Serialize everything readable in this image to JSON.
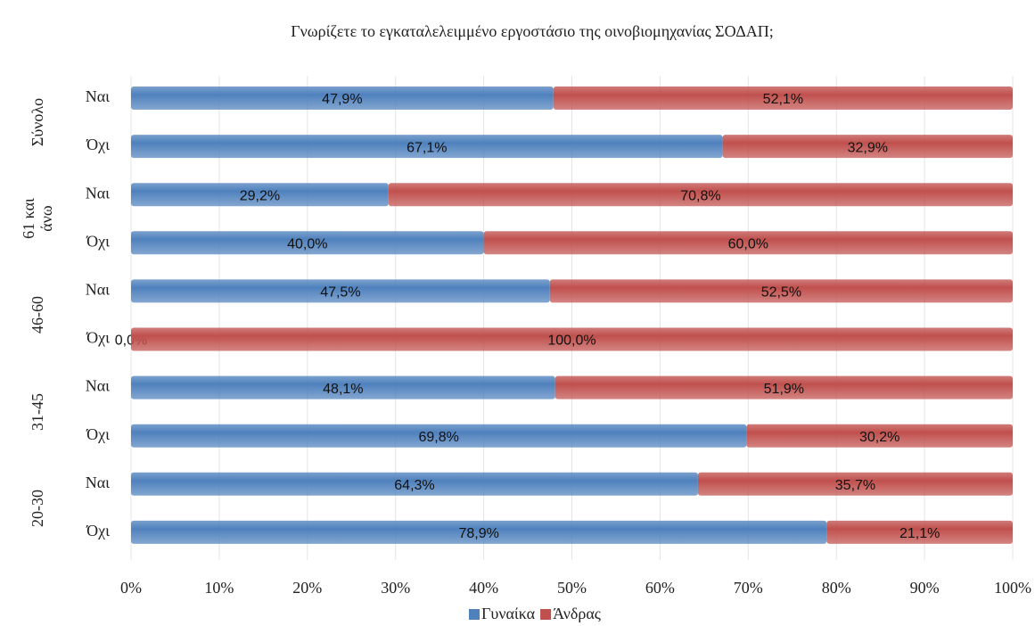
{
  "chart_data": {
    "type": "stacked_bar_horizontal",
    "title": "Γνωρίζετε το εγκαταλελειμμένο εργοστάσιο της οινοβιομηχανίας ΣΟΔΑΠ;",
    "groups": [
      {
        "label": "Σύνολο",
        "categories": [
          "Ναι",
          "Όχι"
        ]
      },
      {
        "label": "61 και άνω",
        "categories": [
          "Ναι",
          "Όχι"
        ]
      },
      {
        "label": "46-60",
        "categories": [
          "Ναι",
          "Όχι"
        ]
      },
      {
        "label": "31-45",
        "categories": [
          "Ναι",
          "Όχι"
        ]
      },
      {
        "label": "20-30",
        "categories": [
          "Ναι",
          "Όχι"
        ]
      }
    ],
    "series": [
      {
        "name": "Γυναίκα",
        "color": "#4f81bd",
        "values": [
          47.9,
          67.1,
          29.2,
          40.0,
          47.5,
          0.0,
          48.1,
          69.8,
          64.3,
          78.9
        ],
        "value_labels": [
          "47,9%",
          "67,1%",
          "29,2%",
          "40,0%",
          "47,5%",
          "0,0%",
          "48,1%",
          "69,8%",
          "64,3%",
          "78,9%"
        ]
      },
      {
        "name": "Άνδρας",
        "color": "#c0504d",
        "values": [
          52.1,
          32.9,
          70.8,
          60.0,
          52.5,
          100.0,
          51.9,
          30.2,
          35.7,
          21.1
        ],
        "value_labels": [
          "52,1%",
          "32,9%",
          "70,8%",
          "60,0%",
          "52,5%",
          "100,0%",
          "51,9%",
          "30,2%",
          "35,7%",
          "21,1%"
        ]
      }
    ],
    "xlim": [
      0,
      100
    ],
    "xticks": [
      {
        "value": 0,
        "label": "0%"
      },
      {
        "value": 10,
        "label": "10%"
      },
      {
        "value": 20,
        "label": "20%"
      },
      {
        "value": 30,
        "label": "30%"
      },
      {
        "value": 40,
        "label": "40%"
      },
      {
        "value": 50,
        "label": "50%"
      },
      {
        "value": 60,
        "label": "60%"
      },
      {
        "value": 70,
        "label": "70%"
      },
      {
        "value": 80,
        "label": "80%"
      },
      {
        "value": 90,
        "label": "90%"
      },
      {
        "value": 100,
        "label": "100%"
      }
    ],
    "grid": true,
    "legend": "bottom"
  }
}
